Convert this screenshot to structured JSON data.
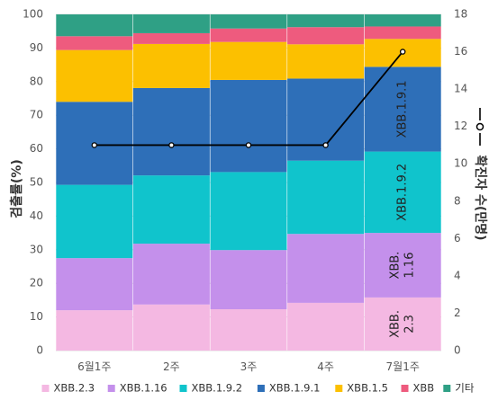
{
  "chart_data": {
    "type": "bar",
    "stacked": true,
    "categories": [
      "6월1주",
      "2주",
      "3주",
      "4주",
      "7월1주"
    ],
    "ylabel": "검출률(%)",
    "y2label": "확진자 수(만명)",
    "ylim": [
      0,
      100
    ],
    "y2lim": [
      0,
      18
    ],
    "yticks": [
      0,
      10,
      20,
      30,
      40,
      50,
      60,
      70,
      80,
      90,
      100
    ],
    "y2ticks": [
      0,
      2,
      4,
      6,
      8,
      10,
      12,
      14,
      16,
      18
    ],
    "grid": true,
    "legend_position": "bottom",
    "series": [
      {
        "name": "XBB.2.3",
        "color": "#f4b8e2",
        "values": [
          12.0,
          13.7,
          12.3,
          14.2,
          15.8
        ]
      },
      {
        "name": "XBB.1.16",
        "color": "#c490eb",
        "values": [
          15.5,
          18.1,
          17.6,
          20.5,
          19.2
        ]
      },
      {
        "name": "XBB.1.9.2",
        "color": "#10c4cc",
        "values": [
          21.8,
          20.3,
          23.2,
          21.8,
          24.2
        ]
      },
      {
        "name": "XBB.1.9.1",
        "color": "#2e6fb8",
        "values": [
          24.7,
          26.0,
          27.4,
          24.4,
          25.2
        ]
      },
      {
        "name": "XBB.1.5",
        "color": "#fcc000",
        "values": [
          15.4,
          13.1,
          11.3,
          10.2,
          8.3
        ]
      },
      {
        "name": "XBB",
        "color": "#ee5b7e",
        "values": [
          4.1,
          3.2,
          4.0,
          5.1,
          3.7
        ]
      },
      {
        "name": "기타",
        "color": "#2fa085",
        "values": [
          6.5,
          5.6,
          4.2,
          3.8,
          3.6
        ]
      }
    ],
    "line": {
      "name": "확진자 수(만명)",
      "axis": "right",
      "color": "#000000",
      "values": [
        11,
        11,
        11,
        11,
        16
      ]
    },
    "bar_labels": [
      {
        "category": 4,
        "series": 0,
        "lines": [
          "XBB.",
          "2.3"
        ]
      },
      {
        "category": 4,
        "series": 1,
        "lines": [
          "XBB.",
          "1.16"
        ]
      },
      {
        "category": 4,
        "series": 2,
        "lines": [
          "XBB.1.9.2"
        ]
      },
      {
        "category": 4,
        "series": 3,
        "lines": [
          "XBB.1.9.1"
        ]
      }
    ]
  }
}
